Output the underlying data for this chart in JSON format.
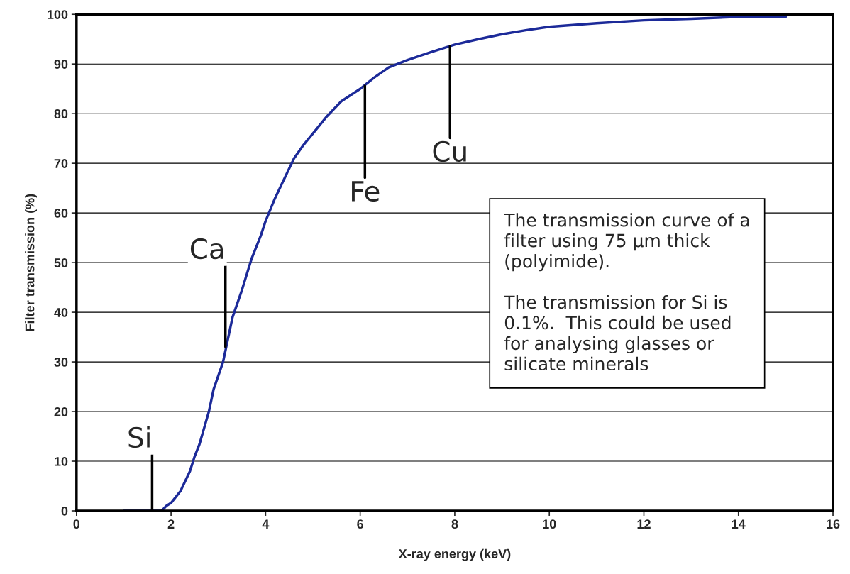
{
  "chart_data": {
    "type": "line",
    "xlabel": "X-ray energy (keV)",
    "ylabel": "Filter transmission (%)",
    "x": [
      1,
      1.8,
      1.9,
      2.0,
      2.2,
      2.4,
      2.5,
      2.6,
      2.8,
      2.9,
      3.1,
      3.3,
      3.5,
      3.7,
      3.9,
      4.0,
      4.2,
      4.4,
      4.6,
      4.8,
      5.0,
      5.3,
      5.6,
      6.0,
      6.3,
      6.6,
      7.0,
      7.5,
      8.0,
      8.5,
      9.0,
      9.5,
      10,
      11,
      12,
      13,
      14,
      15
    ],
    "series": [
      {
        "color": "#1c2a99",
        "values": [
          0,
          0,
          1,
          1.6,
          4,
          8,
          11,
          13.4,
          20,
          24.5,
          30,
          39,
          44.5,
          50.7,
          55.5,
          58.4,
          63,
          67,
          71,
          73.7,
          76,
          79.5,
          82.5,
          85,
          87.3,
          89.3,
          90.8,
          92.4,
          93.9,
          95,
          96,
          96.8,
          97.5,
          98.2,
          98.8,
          99.1,
          99.5,
          99.5
        ]
      }
    ],
    "xlim": [
      0,
      16
    ],
    "xticks": [
      0,
      2,
      4,
      6,
      8,
      10,
      12,
      14,
      16
    ],
    "ylim": [
      0,
      100
    ],
    "yticks": [
      0,
      10,
      20,
      30,
      40,
      50,
      60,
      70,
      80,
      90,
      100
    ],
    "grid": "y",
    "marker": "none",
    "line_style": "solid",
    "annotations": [
      {
        "text": "Si",
        "x": 1.6,
        "y": 0
      },
      {
        "text": "Ca",
        "x": 3.15,
        "y": 33
      },
      {
        "text": "Fe",
        "x": 6.1,
        "y": 85.6
      },
      {
        "text": "Cu",
        "x": 7.9,
        "y": 93.6
      },
      "The transmission curve of a\nfilter using 75 μm thick\n(polyimide).\n\nThe transmission for Si is\n0.1%.  This could be used\nfor analysing glasses or\nsilicate minerals"
    ]
  }
}
